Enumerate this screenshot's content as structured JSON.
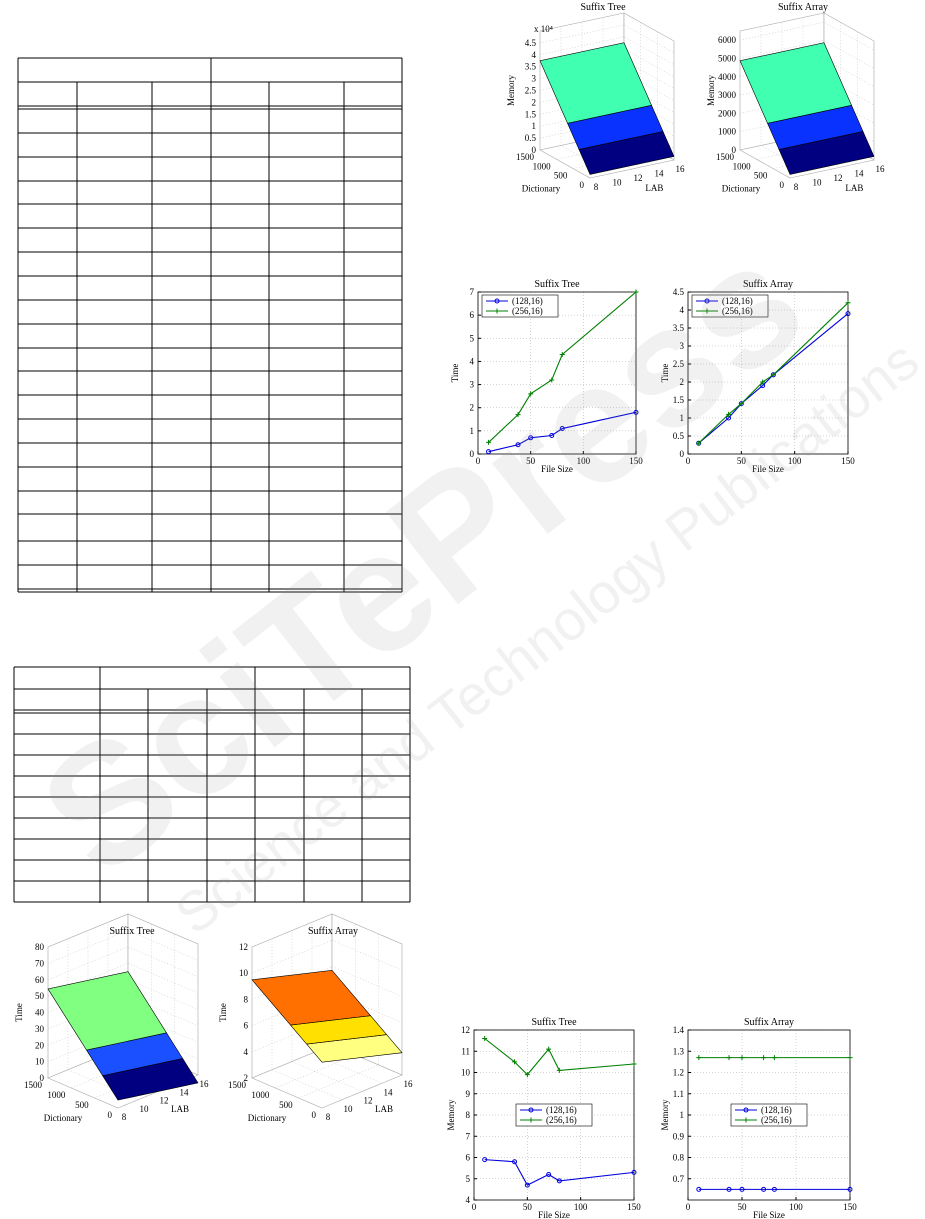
{
  "watermark": {
    "brand": "SciTePress",
    "tagline": "Science and Technology Publications"
  },
  "chart_data": [
    {
      "type": "surface3d",
      "title": "Suffix Tree",
      "zlabel": "Memory",
      "xlabel": "LAB",
      "ylabel": "Dictionary",
      "annotation": "x 10⁴",
      "xlim": [
        8,
        16
      ],
      "xticks": [
        8,
        10,
        12,
        14,
        16
      ],
      "ylim": [
        0,
        1500
      ],
      "yticks": [
        0,
        500,
        1000,
        1500
      ],
      "zlim": [
        0,
        5
      ],
      "zticks": [
        0,
        0.5,
        1,
        1.5,
        2,
        2.5,
        3,
        3.5,
        4,
        4.5
      ],
      "colors": [
        "#000080",
        "#0a32ff",
        "#40ffb0"
      ]
    },
    {
      "type": "surface3d",
      "title": "Suffix Array",
      "zlabel": "Memory",
      "xlabel": "LAB",
      "ylabel": "Dictionary",
      "xlim": [
        8,
        16
      ],
      "xticks": [
        8,
        10,
        12,
        14,
        16
      ],
      "ylim": [
        0,
        1500
      ],
      "yticks": [
        0,
        500,
        1000,
        1500
      ],
      "zlim": [
        0,
        6500
      ],
      "zticks": [
        0,
        1000,
        2000,
        3000,
        4000,
        5000,
        6000
      ],
      "colors": [
        "#000080",
        "#0a32ff",
        "#40ffb0"
      ]
    },
    {
      "type": "surface3d",
      "title": "Suffix Tree",
      "zlabel": "Time",
      "xlabel": "LAB",
      "ylabel": "Dictionary",
      "xlim": [
        8,
        16
      ],
      "xticks": [
        8,
        10,
        12,
        14,
        16
      ],
      "ylim": [
        0,
        1500
      ],
      "yticks": [
        0,
        500,
        1000,
        1500
      ],
      "zlim": [
        0,
        80
      ],
      "zticks": [
        0,
        10,
        20,
        30,
        40,
        50,
        60,
        70,
        80
      ],
      "colors": [
        "#000080",
        "#1a50ff",
        "#80ff80"
      ]
    },
    {
      "type": "surface3d",
      "title": "Suffix Array",
      "zlabel": "Time",
      "xlabel": "LAB",
      "ylabel": "Dictionary",
      "xlim": [
        8,
        16
      ],
      "xticks": [
        8,
        10,
        12,
        14,
        16
      ],
      "ylim": [
        0,
        1500
      ],
      "yticks": [
        0,
        500,
        1000,
        1500
      ],
      "zlim": [
        2,
        12
      ],
      "zticks": [
        2,
        4,
        6,
        8,
        10,
        12
      ],
      "colors": [
        "#ffff80",
        "#ffe000",
        "#ff7000"
      ]
    },
    {
      "type": "line",
      "title": "Suffix Tree",
      "xlabel": "File Size",
      "ylabel": "Time",
      "grid": true,
      "legend": "upper left",
      "x": [
        10,
        38,
        50,
        70,
        80,
        150
      ],
      "xlim": [
        0,
        150
      ],
      "xticks": [
        0,
        50,
        100,
        150
      ],
      "ylim": [
        0,
        7
      ],
      "yticks": [
        0,
        1,
        2,
        3,
        4,
        5,
        6,
        7
      ],
      "series": [
        {
          "name": "(128,16)",
          "color": "#0000dd",
          "marker": "circle",
          "values": [
            0.1,
            0.4,
            0.7,
            0.8,
            1.1,
            1.8
          ]
        },
        {
          "name": "(256,16)",
          "color": "#008000",
          "marker": "plus",
          "values": [
            0.5,
            1.7,
            2.6,
            3.2,
            4.3,
            7.0
          ]
        }
      ]
    },
    {
      "type": "line",
      "title": "Suffix Array",
      "xlabel": "File Size",
      "ylabel": "Time",
      "grid": true,
      "legend": "upper left",
      "x": [
        10,
        38,
        50,
        70,
        80,
        150
      ],
      "xlim": [
        0,
        150
      ],
      "xticks": [
        0,
        50,
        100,
        150
      ],
      "ylim": [
        0,
        4.5
      ],
      "yticks": [
        0,
        0.5,
        1,
        1.5,
        2,
        2.5,
        3,
        3.5,
        4,
        4.5
      ],
      "series": [
        {
          "name": "(128,16)",
          "color": "#0000dd",
          "marker": "circle",
          "values": [
            0.3,
            1.0,
            1.4,
            1.9,
            2.2,
            3.9
          ]
        },
        {
          "name": "(256,16)",
          "color": "#008000",
          "marker": "plus",
          "values": [
            0.3,
            1.1,
            1.4,
            2.0,
            2.2,
            4.2
          ]
        }
      ]
    },
    {
      "type": "line",
      "title": "Suffix Tree",
      "xlabel": "File Size",
      "ylabel": "Memory",
      "grid": true,
      "legend": "center",
      "x": [
        10,
        38,
        50,
        70,
        80,
        150
      ],
      "xlim": [
        0,
        150
      ],
      "xticks": [
        0,
        50,
        100,
        150
      ],
      "ylim": [
        4,
        12
      ],
      "yticks": [
        4,
        5,
        6,
        7,
        8,
        9,
        10,
        11,
        12
      ],
      "series": [
        {
          "name": "(128,16)",
          "color": "#0000dd",
          "marker": "circle",
          "values": [
            5.9,
            5.8,
            4.7,
            5.2,
            4.9,
            5.3
          ]
        },
        {
          "name": "(256,16)",
          "color": "#008000",
          "marker": "plus",
          "values": [
            11.6,
            10.5,
            9.9,
            11.1,
            10.1,
            10.4
          ]
        }
      ]
    },
    {
      "type": "line",
      "title": "Suffix Array",
      "xlabel": "File Size",
      "ylabel": "Memory",
      "grid": true,
      "legend": "center",
      "x": [
        10,
        38,
        50,
        70,
        80,
        150
      ],
      "xlim": [
        0,
        150
      ],
      "xticks": [
        0,
        50,
        100,
        150
      ],
      "ylim": [
        0.6,
        1.4
      ],
      "yticks": [
        0.7,
        0.8,
        0.9,
        1,
        1.1,
        1.2,
        1.3,
        1.4
      ],
      "series": [
        {
          "name": "(128,16)",
          "color": "#0000dd",
          "marker": "circle",
          "values": [
            0.65,
            0.65,
            0.65,
            0.65,
            0.65,
            0.65
          ]
        },
        {
          "name": "(256,16)",
          "color": "#008000",
          "marker": "plus",
          "values": [
            1.27,
            1.27,
            1.27,
            1.27,
            1.27,
            1.27
          ]
        }
      ]
    }
  ]
}
